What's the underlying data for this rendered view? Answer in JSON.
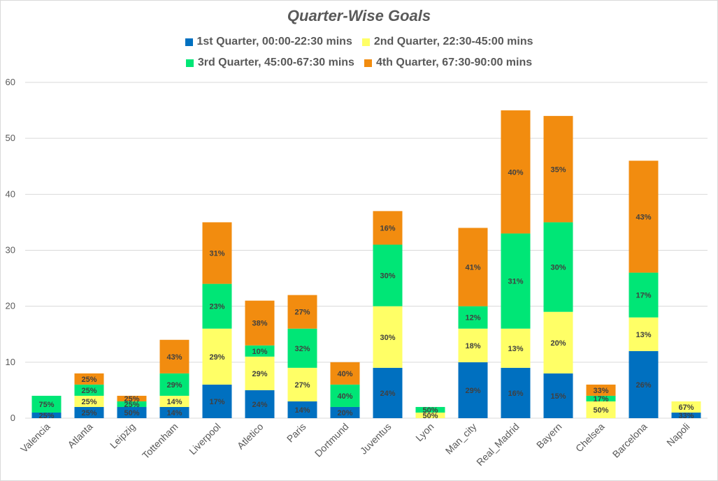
{
  "chart_data": {
    "type": "bar",
    "stacked": true,
    "title": "Quarter-Wise Goals",
    "xlabel": "",
    "ylabel": "",
    "ylim": [
      0,
      60
    ],
    "yticks": [
      0,
      10,
      20,
      30,
      40,
      50,
      60
    ],
    "grid": true,
    "legend_position": "top",
    "categories": [
      "Valencia",
      "Atlanta",
      "Leipzig",
      "Tottenham",
      "Liverpool",
      "Atletico",
      "Paris",
      "Dortmund",
      "Juventus",
      "Lyon",
      "Man_city",
      "Real_Madrid",
      "Bayern",
      "Chelsea",
      "Barcelona",
      "Napoli"
    ],
    "series": [
      {
        "name": "1st Quarter, 00:00-22:30 mins",
        "color": "#0070C0",
        "values": [
          1,
          2,
          2,
          2,
          6,
          5,
          3,
          2,
          9,
          0,
          10,
          9,
          8,
          0,
          12,
          1
        ],
        "labels": [
          "25%",
          "25%",
          "50%",
          "14%",
          "17%",
          "24%",
          "14%",
          "20%",
          "24%",
          "",
          "29%",
          "16%",
          "15%",
          "",
          "26%",
          "33%"
        ]
      },
      {
        "name": "2nd Quarter, 22:30-45:00 mins",
        "color": "#FFFF66",
        "values": [
          0,
          2,
          0,
          2,
          10,
          6,
          6,
          0,
          11,
          1,
          6,
          7,
          11,
          3,
          6,
          2
        ],
        "labels": [
          "",
          "25%",
          "",
          "14%",
          "29%",
          "29%",
          "27%",
          "",
          "30%",
          "50%",
          "18%",
          "13%",
          "20%",
          "50%",
          "13%",
          "67%"
        ]
      },
      {
        "name": "3rd Quarter, 45:00-67:30 mins",
        "color": "#00E676",
        "values": [
          3,
          2,
          1,
          4,
          8,
          2,
          7,
          4,
          11,
          1,
          4,
          17,
          16,
          1,
          8,
          0
        ],
        "labels": [
          "75%",
          "25%",
          "25%",
          "29%",
          "23%",
          "10%",
          "32%",
          "40%",
          "30%",
          "50%",
          "12%",
          "31%",
          "30%",
          "17%",
          "17%",
          ""
        ]
      },
      {
        "name": "4th Quarter, 67:30-90:00 mins",
        "color": "#F28C0F",
        "values": [
          0,
          2,
          1,
          6,
          11,
          8,
          6,
          4,
          6,
          0,
          14,
          22,
          19,
          2,
          20,
          0
        ],
        "labels": [
          "",
          "25%",
          "25%",
          "43%",
          "31%",
          "38%",
          "27%",
          "40%",
          "16%",
          "",
          "41%",
          "40%",
          "35%",
          "33%",
          "43%",
          ""
        ]
      }
    ]
  }
}
